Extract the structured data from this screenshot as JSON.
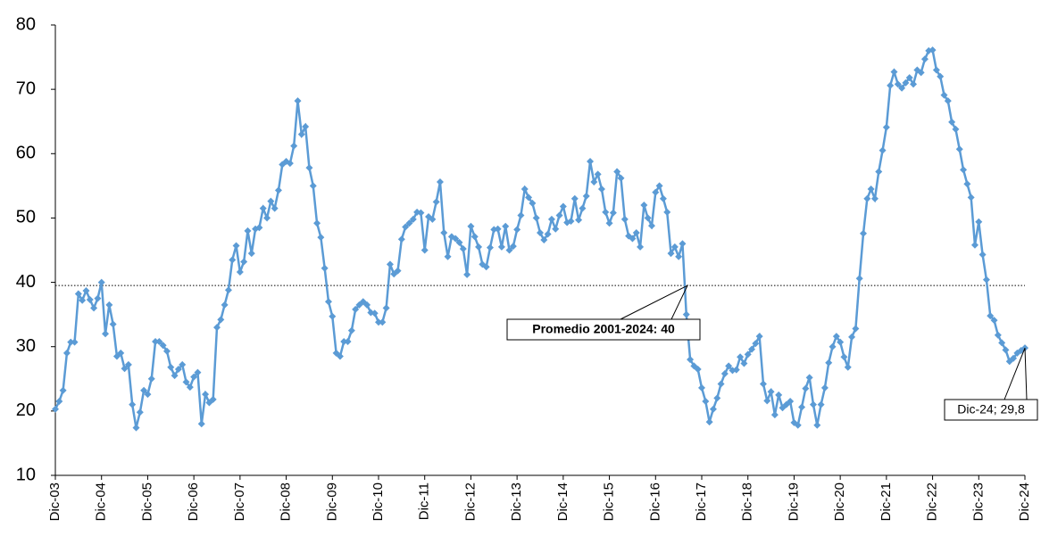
{
  "chart_data": {
    "type": "line",
    "categories": [
      "Dic-03",
      null,
      null,
      null,
      null,
      null,
      null,
      null,
      null,
      null,
      null,
      null,
      "Dic-04",
      null,
      null,
      null,
      null,
      null,
      null,
      null,
      null,
      null,
      null,
      null,
      "Dic-05",
      null,
      null,
      null,
      null,
      null,
      null,
      null,
      null,
      null,
      null,
      null,
      "Dic-06",
      null,
      null,
      null,
      null,
      null,
      null,
      null,
      null,
      null,
      null,
      null,
      "Dic-07",
      null,
      null,
      null,
      null,
      null,
      null,
      null,
      null,
      null,
      null,
      null,
      "Dic-08",
      null,
      null,
      null,
      null,
      null,
      null,
      null,
      null,
      null,
      null,
      null,
      "Dic-09",
      null,
      null,
      null,
      null,
      null,
      null,
      null,
      null,
      null,
      null,
      null,
      "Dic-10",
      null,
      null,
      null,
      null,
      null,
      null,
      null,
      null,
      null,
      null,
      null,
      "Dic-11",
      null,
      null,
      null,
      null,
      null,
      null,
      null,
      null,
      null,
      null,
      null,
      "Dic-12",
      null,
      null,
      null,
      null,
      null,
      null,
      null,
      null,
      null,
      null,
      null,
      "Dic-13",
      null,
      null,
      null,
      null,
      null,
      null,
      null,
      null,
      null,
      null,
      null,
      "Dic-14",
      null,
      null,
      null,
      null,
      null,
      null,
      null,
      null,
      null,
      null,
      null,
      "Dic-15",
      null,
      null,
      null,
      null,
      null,
      null,
      null,
      null,
      null,
      null,
      null,
      "Dic-16",
      null,
      null,
      null,
      null,
      null,
      null,
      null,
      null,
      null,
      null,
      null,
      "Dic-17",
      null,
      null,
      null,
      null,
      null,
      null,
      null,
      null,
      null,
      null,
      null,
      "Dic-18",
      null,
      null,
      null,
      null,
      null,
      null,
      null,
      null,
      null,
      null,
      null,
      "Dic-19",
      null,
      null,
      null,
      null,
      null,
      null,
      null,
      null,
      null,
      null,
      null,
      "Dic-20",
      null,
      null,
      null,
      null,
      null,
      null,
      null,
      null,
      null,
      null,
      null,
      "Dic-21",
      null,
      null,
      null,
      null,
      null,
      null,
      null,
      null,
      null,
      null,
      null,
      "Dic-22",
      null,
      null,
      null,
      null,
      null,
      null,
      null,
      null,
      null,
      null,
      null,
      "Dic-23",
      null,
      null,
      null,
      null,
      null,
      null,
      null,
      null,
      null,
      null,
      null,
      "Dic-24"
    ],
    "values": [
      20.3,
      21.5,
      23.2,
      29,
      30.7,
      30.7,
      38.2,
      37.2,
      38.7,
      37.3,
      36,
      37.5,
      40,
      32,
      36.5,
      33.5,
      28.5,
      29,
      26.6,
      27.2,
      21,
      17.4,
      19.8,
      23.2,
      22.6,
      25,
      30.8,
      30.8,
      30.2,
      29.3,
      26.8,
      25.5,
      26.5,
      27.2,
      24.5,
      23.7,
      25.3,
      26,
      18,
      22.6,
      21.3,
      21.8,
      33,
      34.2,
      36.5,
      38.8,
      43.5,
      45.7,
      41.6,
      43.2,
      48,
      44.5,
      48.3,
      48.5,
      51.5,
      50,
      52.6,
      51.5,
      54.3,
      58.3,
      58.8,
      58.5,
      61.2,
      68.2,
      63,
      64.2,
      57.8,
      55,
      49.2,
      47,
      42.2,
      37,
      34.7,
      29,
      28.5,
      30.8,
      30.8,
      32.5,
      35.8,
      36.5,
      37,
      36.5,
      35.3,
      35.2,
      33.8,
      33.8,
      36,
      42.8,
      41.3,
      41.8,
      46.7,
      48.6,
      49.2,
      49.8,
      50.9,
      50.8,
      45,
      50.2,
      49.8,
      52.5,
      55.6,
      47.7,
      44,
      47.1,
      46.8,
      46.2,
      45.2,
      41.2,
      48.7,
      47.1,
      45.5,
      42.8,
      42.4,
      45.4,
      48.2,
      48.3,
      45.5,
      48.7,
      45,
      45.6,
      48.2,
      50.4,
      54.5,
      53.2,
      52.3,
      50,
      47.7,
      46.6,
      47.5,
      49.8,
      48.3,
      50.4,
      51.8,
      49.3,
      49.5,
      53,
      49.7,
      51.5,
      53.4,
      58.8,
      55.6,
      56.8,
      54.5,
      50.9,
      49.2,
      50.8,
      57.2,
      56.2,
      49.8,
      47.2,
      46.8,
      47.7,
      45.5,
      52,
      50,
      48.8,
      54,
      55,
      53,
      50.9,
      44.5,
      45.5,
      44,
      46,
      35,
      28,
      27,
      26.5,
      23.6,
      21.5,
      18.3,
      20.3,
      22,
      24.2,
      25.8,
      27,
      26.3,
      26.4,
      28.4,
      27.4,
      28.8,
      29.6,
      30.5,
      31.6,
      24.2,
      21.6,
      23,
      19.4,
      22.5,
      20.5,
      21,
      21.5,
      18.2,
      17.8,
      20.6,
      23.5,
      25.2,
      21,
      17.8,
      21,
      23.6,
      27.5,
      30,
      31.6,
      30.7,
      28.4,
      26.8,
      31.5,
      32.8,
      40.6,
      47.6,
      53,
      54.5,
      53,
      57.2,
      60.5,
      64.1,
      70.6,
      72.7,
      70.8,
      70.2,
      71,
      71.8,
      70.8,
      73,
      72.6,
      74.7,
      76,
      76.1,
      73,
      72,
      69.1,
      68.2,
      64.9,
      63.8,
      60.7,
      57.5,
      55.3,
      53.2,
      45.8,
      49.4,
      44.3,
      40.4,
      34.8,
      34.1,
      31.8,
      30.6,
      29.5,
      27.7,
      28.2,
      29,
      29.4,
      29.8
    ],
    "color": "#5b9bd5",
    "ylim": [
      10,
      80
    ],
    "yticks": [
      10,
      20,
      30,
      40,
      50,
      60,
      70,
      80
    ],
    "grid": false,
    "average_line": {
      "value": 39.5,
      "label": "Promedio 2001-2024: 40"
    },
    "last_point_label": "Dic-24; 29,8"
  }
}
